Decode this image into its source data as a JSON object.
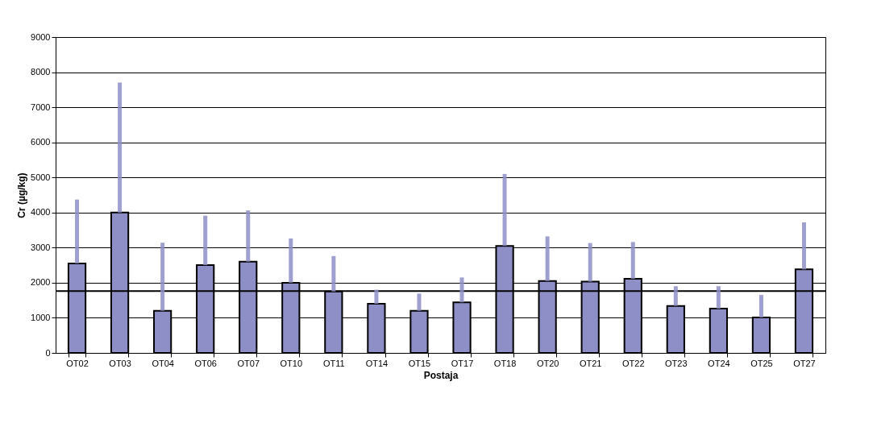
{
  "chart_data": {
    "type": "bar",
    "xlabel": "Postaja",
    "ylabel": "Cr (µg/kg)",
    "categories": [
      "OT02",
      "OT03",
      "OT04",
      "OT06",
      "OT07",
      "OT10",
      "OT11",
      "OT14",
      "OT15",
      "OT17",
      "OT18",
      "OT20",
      "OT21",
      "OT22",
      "OT23",
      "OT24",
      "OT25",
      "OT27"
    ],
    "series": [
      {
        "color": "#8f8fc8",
        "values": [
          2550,
          4000,
          1200,
          2500,
          2600,
          2000,
          1750,
          1400,
          1200,
          1440,
          3050,
          2050,
          2030,
          2110,
          1340,
          1260,
          1010,
          2380
        ],
        "errors": [
          [
            2550,
            4370
          ],
          [
            4000,
            7700
          ],
          [
            1200,
            3140
          ],
          [
            2500,
            3910
          ],
          [
            2600,
            4060
          ],
          [
            2000,
            3260
          ],
          [
            1750,
            2760
          ],
          [
            1400,
            1800
          ],
          [
            1200,
            1690
          ],
          [
            1440,
            2150
          ],
          [
            3050,
            5100
          ],
          [
            2050,
            3320
          ],
          [
            2030,
            3130
          ],
          [
            2110,
            3160
          ],
          [
            1340,
            1900
          ],
          [
            1260,
            1900
          ],
          [
            1010,
            1650
          ],
          [
            2380,
            3720
          ]
        ]
      }
    ],
    "ylim": [
      0,
      9000
    ],
    "yticks": [
      0,
      1000,
      2000,
      3000,
      4000,
      5000,
      6000,
      7000,
      8000,
      9000
    ],
    "grid": "y",
    "ref_lines": [
      {
        "axis": "y",
        "value": 1760,
        "color": "#000000"
      }
    ]
  }
}
